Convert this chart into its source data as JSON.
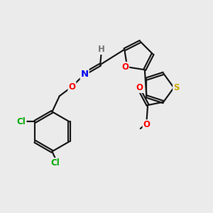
{
  "background_color": "#ebebeb",
  "bond_color": "#1a1a1a",
  "atom_colors": {
    "O": "#ff0000",
    "N": "#0000ee",
    "S": "#ccaa00",
    "Cl": "#00aa00",
    "H": "#777777",
    "C": "#1a1a1a"
  },
  "figsize": [
    3.0,
    3.0
  ],
  "dpi": 100
}
